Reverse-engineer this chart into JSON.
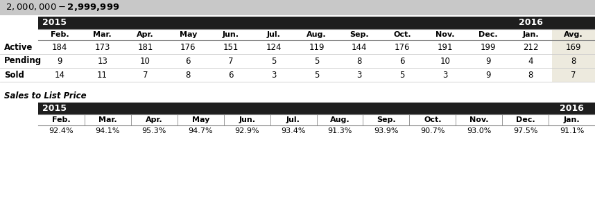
{
  "title": "$2,000,000 - $2,999,999",
  "title_bg": "#c8c8c8",
  "header_bg": "#1e1e1e",
  "avg_bg": "#edeade",
  "row_labels": [
    "Active",
    "Pending",
    "Sold"
  ],
  "col_headers": [
    "Feb.",
    "Mar.",
    "Apr.",
    "May",
    "Jun.",
    "Jul.",
    "Aug.",
    "Sep.",
    "Oct.",
    "Nov.",
    "Dec.",
    "Jan.",
    "Avg."
  ],
  "year_2015": "2015",
  "year_2016": "2016",
  "data": [
    [
      184,
      173,
      181,
      176,
      151,
      124,
      119,
      144,
      176,
      191,
      199,
      212,
      169
    ],
    [
      9,
      13,
      10,
      6,
      7,
      5,
      5,
      8,
      6,
      10,
      9,
      4,
      8
    ],
    [
      14,
      11,
      7,
      8,
      6,
      3,
      5,
      3,
      5,
      3,
      9,
      8,
      7
    ]
  ],
  "sales_label": "Sales to List Price",
  "sales_col_headers": [
    "Feb.",
    "Mar.",
    "Apr.",
    "May",
    "Jun.",
    "Jul.",
    "Aug.",
    "Sep.",
    "Oct.",
    "Nov.",
    "Dec.",
    "Jan."
  ],
  "sales_data": [
    "92.4%",
    "94.1%",
    "95.3%",
    "94.7%",
    "92.9%",
    "93.4%",
    "91.3%",
    "93.9%",
    "90.7%",
    "93.0%",
    "97.5%",
    "91.1%"
  ],
  "sales_year_2015": "2015",
  "sales_year_2016": "2016",
  "fig_w": 8.58,
  "fig_h": 3.06,
  "dpi": 100
}
